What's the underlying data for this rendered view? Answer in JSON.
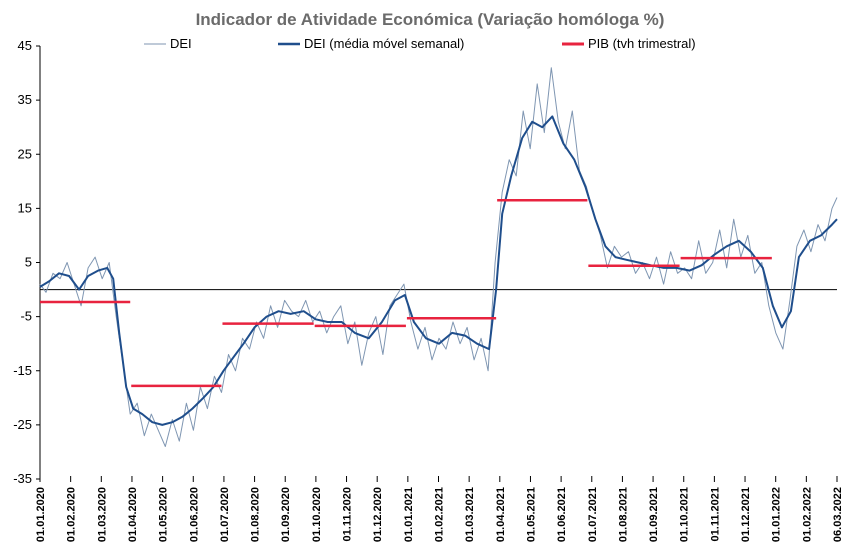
{
  "chart_data": {
    "type": "line",
    "title": "Indicador de Atividade Económica (Variação homóloga %)",
    "xlabel": "",
    "ylabel": "",
    "ylim": [
      -35,
      45
    ],
    "yticks": [
      45,
      35,
      25,
      15,
      5,
      -5,
      -15,
      -25,
      -35
    ],
    "x_tick_labels": [
      "01.01.2020",
      "01.02.2020",
      "01.03.2020",
      "01.04.2020",
      "01.05.2020",
      "01.06.2020",
      "01.07.2020",
      "01.08.2020",
      "01.09.2020",
      "01.10.2020",
      "01.11.2020",
      "01.12.2020",
      "01.01.2021",
      "01.02.2021",
      "01.03.2021",
      "01.04.2021",
      "01.05.2021",
      "01.06.2021",
      "01.07.2021",
      "01.08.2021",
      "01.09.2021",
      "01.10.2021",
      "01.11.2021",
      "01.12.2021",
      "01.01.2022",
      "01.02.2022",
      "06.03.2022"
    ],
    "legend": {
      "placement": "top-center"
    },
    "grid": false,
    "colors": {
      "dei": "#7f96b2",
      "dei_ma": "#1f4e8c",
      "pib": "#e8233f",
      "axis": "#000000"
    },
    "series": [
      {
        "name": "DEI",
        "style": "thin",
        "points": [
          [
            "2020-01-01",
            1
          ],
          [
            "2020-01-07",
            -0.5
          ],
          [
            "2020-01-14",
            3
          ],
          [
            "2020-01-21",
            2
          ],
          [
            "2020-01-28",
            5
          ],
          [
            "2020-02-04",
            1
          ],
          [
            "2020-02-11",
            -3
          ],
          [
            "2020-02-18",
            4
          ],
          [
            "2020-02-25",
            6
          ],
          [
            "2020-03-03",
            2
          ],
          [
            "2020-03-10",
            5
          ],
          [
            "2020-03-17",
            -5
          ],
          [
            "2020-03-24",
            -14
          ],
          [
            "2020-03-31",
            -23
          ],
          [
            "2020-04-07",
            -21
          ],
          [
            "2020-04-14",
            -27
          ],
          [
            "2020-04-21",
            -23
          ],
          [
            "2020-04-28",
            -26
          ],
          [
            "2020-05-05",
            -29
          ],
          [
            "2020-05-12",
            -24
          ],
          [
            "2020-05-19",
            -28
          ],
          [
            "2020-05-26",
            -21
          ],
          [
            "2020-06-02",
            -26
          ],
          [
            "2020-06-09",
            -18
          ],
          [
            "2020-06-16",
            -22
          ],
          [
            "2020-06-23",
            -16
          ],
          [
            "2020-06-30",
            -19
          ],
          [
            "2020-07-07",
            -12
          ],
          [
            "2020-07-14",
            -15
          ],
          [
            "2020-07-21",
            -9
          ],
          [
            "2020-07-28",
            -11
          ],
          [
            "2020-08-04",
            -6
          ],
          [
            "2020-08-11",
            -9
          ],
          [
            "2020-08-18",
            -3
          ],
          [
            "2020-08-25",
            -7
          ],
          [
            "2020-09-01",
            -2
          ],
          [
            "2020-09-08",
            -4
          ],
          [
            "2020-09-15",
            -5
          ],
          [
            "2020-09-22",
            -2
          ],
          [
            "2020-09-29",
            -6
          ],
          [
            "2020-10-06",
            -4
          ],
          [
            "2020-10-13",
            -8
          ],
          [
            "2020-10-20",
            -5
          ],
          [
            "2020-10-27",
            -3
          ],
          [
            "2020-11-03",
            -10
          ],
          [
            "2020-11-10",
            -6
          ],
          [
            "2020-11-17",
            -14
          ],
          [
            "2020-11-24",
            -8
          ],
          [
            "2020-12-01",
            -5
          ],
          [
            "2020-12-08",
            -12
          ],
          [
            "2020-12-15",
            -3
          ],
          [
            "2020-12-22",
            -1
          ],
          [
            "2020-12-29",
            1
          ],
          [
            "2021-01-05",
            -6
          ],
          [
            "2021-01-12",
            -11
          ],
          [
            "2021-01-19",
            -7
          ],
          [
            "2021-01-26",
            -13
          ],
          [
            "2021-02-02",
            -9
          ],
          [
            "2021-02-09",
            -11
          ],
          [
            "2021-02-16",
            -6
          ],
          [
            "2021-02-23",
            -10
          ],
          [
            "2021-03-02",
            -7
          ],
          [
            "2021-03-09",
            -13
          ],
          [
            "2021-03-16",
            -9
          ],
          [
            "2021-03-23",
            -15
          ],
          [
            "2021-03-30",
            5
          ],
          [
            "2021-04-06",
            18
          ],
          [
            "2021-04-13",
            24
          ],
          [
            "2021-04-20",
            21
          ],
          [
            "2021-04-27",
            33
          ],
          [
            "2021-05-04",
            26
          ],
          [
            "2021-05-11",
            38
          ],
          [
            "2021-05-18",
            29
          ],
          [
            "2021-05-25",
            41
          ],
          [
            "2021-06-01",
            31
          ],
          [
            "2021-06-08",
            26
          ],
          [
            "2021-06-15",
            33
          ],
          [
            "2021-06-22",
            22
          ],
          [
            "2021-06-29",
            19
          ],
          [
            "2021-07-06",
            14
          ],
          [
            "2021-07-13",
            10
          ],
          [
            "2021-07-20",
            4
          ],
          [
            "2021-07-27",
            8
          ],
          [
            "2021-08-03",
            6
          ],
          [
            "2021-08-10",
            7
          ],
          [
            "2021-08-17",
            3
          ],
          [
            "2021-08-24",
            5
          ],
          [
            "2021-08-31",
            2
          ],
          [
            "2021-09-07",
            6
          ],
          [
            "2021-09-14",
            1
          ],
          [
            "2021-09-21",
            7
          ],
          [
            "2021-09-28",
            3
          ],
          [
            "2021-10-05",
            4
          ],
          [
            "2021-10-12",
            2
          ],
          [
            "2021-10-19",
            9
          ],
          [
            "2021-10-26",
            3
          ],
          [
            "2021-11-02",
            5
          ],
          [
            "2021-11-09",
            11
          ],
          [
            "2021-11-16",
            4
          ],
          [
            "2021-11-23",
            13
          ],
          [
            "2021-11-30",
            6
          ],
          [
            "2021-12-07",
            10
          ],
          [
            "2021-12-14",
            3
          ],
          [
            "2021-12-21",
            5
          ],
          [
            "2021-12-28",
            -3
          ],
          [
            "2022-01-04",
            -8
          ],
          [
            "2022-01-11",
            -11
          ],
          [
            "2022-01-18",
            -2
          ],
          [
            "2022-01-25",
            8
          ],
          [
            "2022-02-01",
            11
          ],
          [
            "2022-02-08",
            7
          ],
          [
            "2022-02-15",
            12
          ],
          [
            "2022-02-22",
            9
          ],
          [
            "2022-03-01",
            15
          ],
          [
            "2022-03-06",
            17
          ]
        ]
      },
      {
        "name": "DEI (média móvel semanal)",
        "style": "thick",
        "points": [
          [
            "2020-01-01",
            0.5
          ],
          [
            "2020-01-10",
            1.5
          ],
          [
            "2020-01-20",
            3
          ],
          [
            "2020-01-30",
            2.5
          ],
          [
            "2020-02-09",
            0
          ],
          [
            "2020-02-18",
            2.5
          ],
          [
            "2020-02-28",
            3.5
          ],
          [
            "2020-03-08",
            4
          ],
          [
            "2020-03-14",
            2
          ],
          [
            "2020-03-20",
            -8
          ],
          [
            "2020-03-27",
            -18
          ],
          [
            "2020-04-03",
            -22
          ],
          [
            "2020-04-12",
            -23
          ],
          [
            "2020-04-22",
            -24.5
          ],
          [
            "2020-05-02",
            -25
          ],
          [
            "2020-05-12",
            -24.5
          ],
          [
            "2020-05-22",
            -23.5
          ],
          [
            "2020-06-01",
            -22
          ],
          [
            "2020-06-12",
            -20
          ],
          [
            "2020-06-22",
            -18
          ],
          [
            "2020-07-02",
            -15
          ],
          [
            "2020-07-12",
            -12.5
          ],
          [
            "2020-07-22",
            -10
          ],
          [
            "2020-08-02",
            -7
          ],
          [
            "2020-08-14",
            -5
          ],
          [
            "2020-08-26",
            -4
          ],
          [
            "2020-09-07",
            -4.5
          ],
          [
            "2020-09-20",
            -4
          ],
          [
            "2020-10-02",
            -5.5
          ],
          [
            "2020-10-14",
            -6
          ],
          [
            "2020-10-28",
            -6
          ],
          [
            "2020-11-10",
            -8
          ],
          [
            "2020-11-24",
            -9
          ],
          [
            "2020-12-07",
            -6
          ],
          [
            "2020-12-20",
            -2
          ],
          [
            "2020-12-30",
            -1
          ],
          [
            "2021-01-08",
            -6
          ],
          [
            "2021-01-20",
            -9
          ],
          [
            "2021-02-02",
            -10
          ],
          [
            "2021-02-15",
            -8
          ],
          [
            "2021-02-28",
            -8.5
          ],
          [
            "2021-03-12",
            -10
          ],
          [
            "2021-03-24",
            -11
          ],
          [
            "2021-03-31",
            0
          ],
          [
            "2021-04-06",
            14
          ],
          [
            "2021-04-15",
            21
          ],
          [
            "2021-04-26",
            28
          ],
          [
            "2021-05-06",
            31
          ],
          [
            "2021-05-16",
            30
          ],
          [
            "2021-05-26",
            32
          ],
          [
            "2021-06-06",
            27
          ],
          [
            "2021-06-17",
            24
          ],
          [
            "2021-06-28",
            19
          ],
          [
            "2021-07-08",
            13
          ],
          [
            "2021-07-18",
            8
          ],
          [
            "2021-07-28",
            6
          ],
          [
            "2021-08-08",
            5.5
          ],
          [
            "2021-08-20",
            5
          ],
          [
            "2021-09-01",
            4.5
          ],
          [
            "2021-09-14",
            4
          ],
          [
            "2021-09-27",
            4
          ],
          [
            "2021-10-10",
            3.5
          ],
          [
            "2021-10-22",
            4.5
          ],
          [
            "2021-11-04",
            6.5
          ],
          [
            "2021-11-16",
            8
          ],
          [
            "2021-11-28",
            9
          ],
          [
            "2021-12-10",
            7
          ],
          [
            "2021-12-22",
            4
          ],
          [
            "2022-01-01",
            -3
          ],
          [
            "2022-01-10",
            -7
          ],
          [
            "2022-01-19",
            -4
          ],
          [
            "2022-01-27",
            6
          ],
          [
            "2022-02-07",
            9
          ],
          [
            "2022-02-18",
            10
          ],
          [
            "2022-03-01",
            12
          ],
          [
            "2022-03-06",
            13
          ]
        ]
      },
      {
        "name": "PIB (tvh trimestral)",
        "style": "step",
        "segments": [
          {
            "start": "2020-01-01",
            "end": "2020-03-31",
            "value": -2.3
          },
          {
            "start": "2020-04-01",
            "end": "2020-06-30",
            "value": -17.8
          },
          {
            "start": "2020-07-01",
            "end": "2020-09-30",
            "value": -6.3
          },
          {
            "start": "2020-10-01",
            "end": "2020-12-31",
            "value": -6.7
          },
          {
            "start": "2021-01-01",
            "end": "2021-03-31",
            "value": -5.3
          },
          {
            "start": "2021-04-01",
            "end": "2021-06-30",
            "value": 16.5
          },
          {
            "start": "2021-07-01",
            "end": "2021-09-30",
            "value": 4.4
          },
          {
            "start": "2021-10-01",
            "end": "2021-12-31",
            "value": 5.8
          }
        ]
      }
    ]
  }
}
